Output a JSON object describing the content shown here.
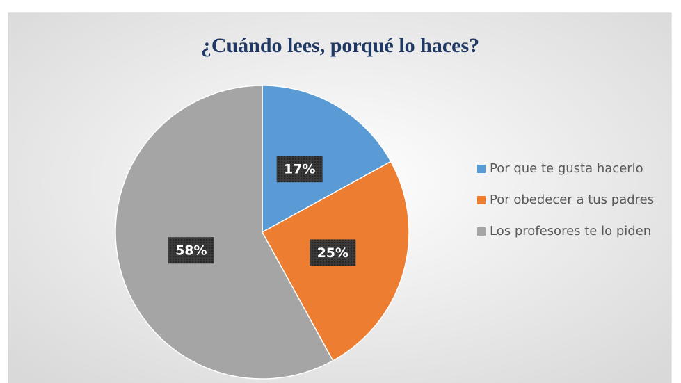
{
  "chart_data": {
    "type": "pie",
    "title": "¿Cuándo lees, porqué lo haces?",
    "categories": [
      "Por que te gusta hacerlo",
      "Por obedecer a tus padres",
      "Los profesores te lo piden"
    ],
    "values": [
      17,
      25,
      58
    ],
    "value_labels": [
      "17%",
      "25%",
      "58%"
    ],
    "colors": [
      "#5b9bd5",
      "#ed7d31",
      "#a5a5a5"
    ],
    "legend": "right"
  }
}
